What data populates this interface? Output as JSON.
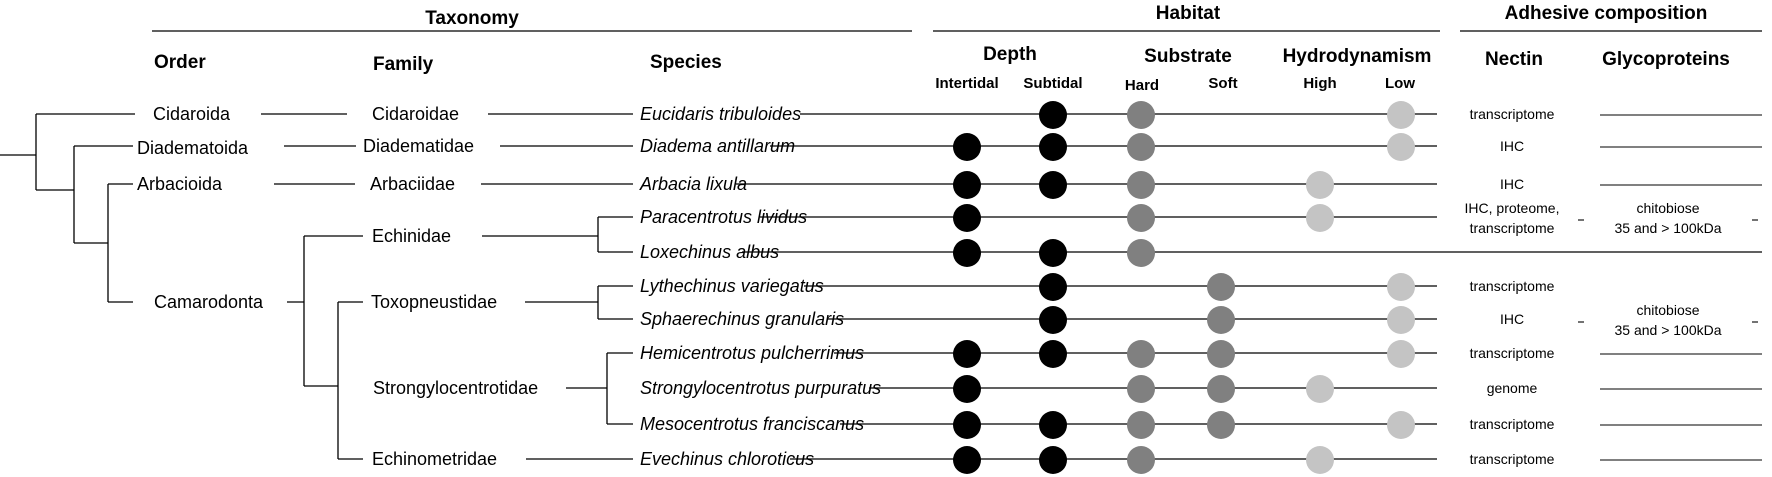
{
  "headers": {
    "taxonomy": "Taxonomy",
    "habitat": "Habitat",
    "adhesive": "Adhesive composition"
  },
  "columns": {
    "order": "Order",
    "family": "Family",
    "species": "Species",
    "depth": "Depth",
    "intertidal": "Intertidal",
    "subtidal": "Subtidal",
    "substrate": "Substrate",
    "hard": "Hard",
    "soft": "Soft",
    "hydrodynamism": "Hydrodynamism",
    "high": "High",
    "low": "Low",
    "nectin": "Nectin",
    "glycoproteins": "Glycoproteins"
  },
  "orders": [
    "Cidaroida",
    "Diadematoida",
    "Arbacioida",
    "Camarodonta"
  ],
  "families": [
    "Cidaroidae",
    "Diadematidae",
    "Arbaciidae",
    "Echinidae",
    "Toxopneustidae",
    "Strongylocentrotidae",
    "Echinometridae"
  ],
  "rows": [
    {
      "species": "Eucidaris tribuloides",
      "intertidal": false,
      "subtidal": true,
      "hard": true,
      "soft": false,
      "high": false,
      "low": true,
      "nectin": [
        "transcriptome"
      ]
    },
    {
      "species": "Diadema antillarum",
      "intertidal": true,
      "subtidal": true,
      "hard": true,
      "soft": false,
      "high": false,
      "low": true,
      "nectin": [
        "IHC"
      ]
    },
    {
      "species": "Arbacia lixula",
      "intertidal": true,
      "subtidal": true,
      "hard": true,
      "soft": false,
      "high": true,
      "low": false,
      "nectin": [
        "IHC"
      ]
    },
    {
      "species": "Paracentrotus lividus",
      "intertidal": true,
      "subtidal": false,
      "hard": true,
      "soft": false,
      "high": true,
      "low": false,
      "nectin": [
        "IHC, proteome,",
        "transcriptome"
      ]
    },
    {
      "species": "Loxechinus albus",
      "intertidal": true,
      "subtidal": true,
      "hard": true,
      "soft": false,
      "high": false,
      "low": false,
      "nectin": []
    },
    {
      "species": "Lythechinus variegatus",
      "intertidal": false,
      "subtidal": true,
      "hard": false,
      "soft": true,
      "high": false,
      "low": true,
      "nectin": [
        "transcriptome"
      ]
    },
    {
      "species": "Sphaerechinus granularis",
      "intertidal": false,
      "subtidal": true,
      "hard": false,
      "soft": true,
      "high": false,
      "low": true,
      "nectin": [
        "IHC"
      ]
    },
    {
      "species": "Hemicentrotus pulcherrimus",
      "intertidal": true,
      "subtidal": true,
      "hard": true,
      "soft": true,
      "high": false,
      "low": true,
      "nectin": [
        "transcriptome"
      ]
    },
    {
      "species": "Strongylocentrotus purpuratus",
      "intertidal": true,
      "subtidal": false,
      "hard": true,
      "soft": true,
      "high": true,
      "low": false,
      "nectin": [
        "genome"
      ]
    },
    {
      "species": "Mesocentrotus franciscanus",
      "intertidal": true,
      "subtidal": true,
      "hard": true,
      "soft": true,
      "high": false,
      "low": true,
      "nectin": [
        "transcriptome"
      ]
    },
    {
      "species": "Evechinus chloroticus",
      "intertidal": true,
      "subtidal": true,
      "hard": true,
      "soft": false,
      "high": true,
      "low": false,
      "nectin": [
        "transcriptome"
      ]
    }
  ],
  "glycoprotein_notes": [
    {
      "lines": [
        "chitobiose",
        "35 and > 100kDa"
      ],
      "row": 3
    },
    {
      "lines": [
        "chitobiose",
        "35 and > 100kDa"
      ],
      "row": 6
    }
  ],
  "colors": {
    "depth": "#000000",
    "substrate": "#808080",
    "hydrodynamism": "#c4c4c4"
  }
}
